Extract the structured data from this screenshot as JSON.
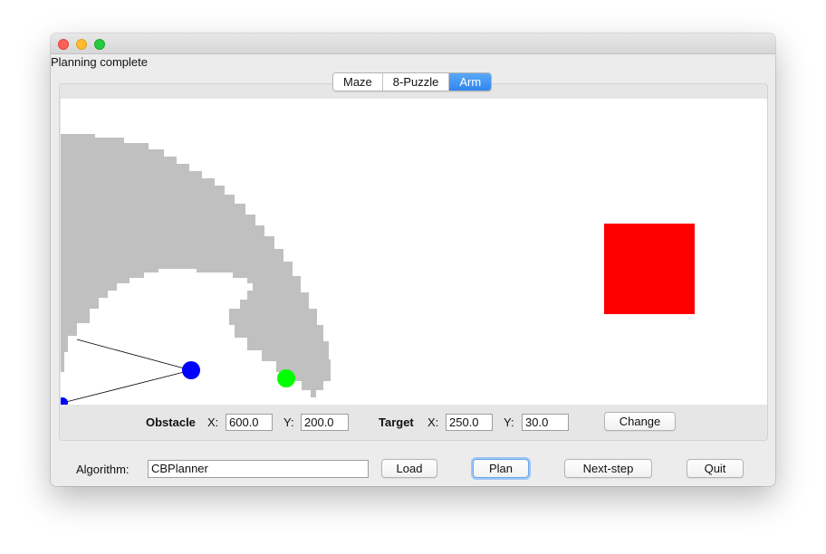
{
  "window": {
    "status_text": "Planning complete"
  },
  "tabs": [
    {
      "label": "Maze",
      "active": false
    },
    {
      "label": "8-Puzzle",
      "active": false
    },
    {
      "label": "Arm",
      "active": true
    }
  ],
  "scene": {
    "obstacle_color": "#ff0000",
    "cspace_color": "#c0c0c0",
    "arm_joint_color": "#0000ff",
    "target_color": "#00ff00"
  },
  "obstacle_controls": {
    "label": "Obstacle",
    "x_label": "X:",
    "x_value": "600.0",
    "y_label": "Y:",
    "y_value": "200.0"
  },
  "target_controls": {
    "label": "Target",
    "x_label": "X:",
    "x_value": "250.0",
    "y_label": "Y:",
    "y_value": "30.0"
  },
  "change_button": "Change",
  "bottom": {
    "algorithm_label": "Algorithm:",
    "algorithm_value": "CBPlanner",
    "load_button": "Load",
    "plan_button": "Plan",
    "next_step_button": "Next-step",
    "quit_button": "Quit"
  }
}
